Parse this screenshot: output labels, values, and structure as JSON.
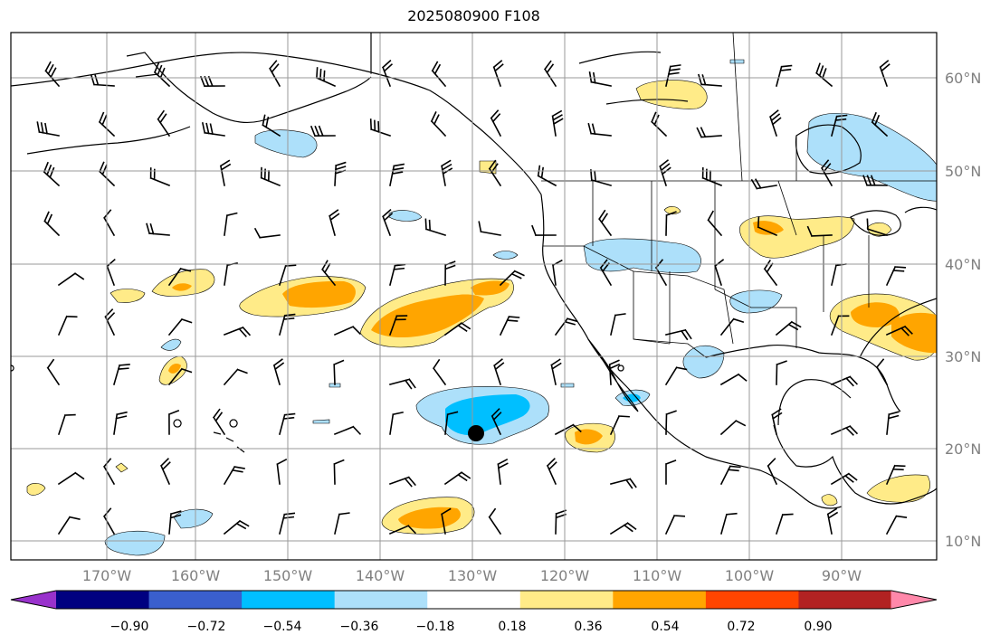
{
  "title": "2025080900 F108",
  "colors": {
    "pos_018": "#ffeb88",
    "pos_036": "#ffa500",
    "neg_018": "#ade0fa",
    "neg_036": "#00bfff"
  },
  "lon_labels": [
    "170°W",
    "160°W",
    "150°W",
    "140°W",
    "130°W",
    "120°W",
    "110°W",
    "100°W",
    "90°W"
  ],
  "lat_labels": [
    "60°N",
    "50°N",
    "40°N",
    "30°N",
    "20°N",
    "10°N"
  ],
  "colorbar": {
    "colors": [
      "#9932cc",
      "#000080",
      "#3a5fcd",
      "#00bfff",
      "#ade0fa",
      "#ffffff",
      "#ffeb88",
      "#ffa500",
      "#ff4500",
      "#b22222",
      "#ff88aa"
    ],
    "tick_labels": [
      "−0.90",
      "−0.72",
      "−0.54",
      "−0.36",
      "−0.18",
      "0.18",
      "0.36",
      "0.54",
      "0.72",
      "0.90"
    ]
  },
  "marker": {
    "label": "storm-center-marker",
    "lon": -130,
    "lat": 22
  }
}
